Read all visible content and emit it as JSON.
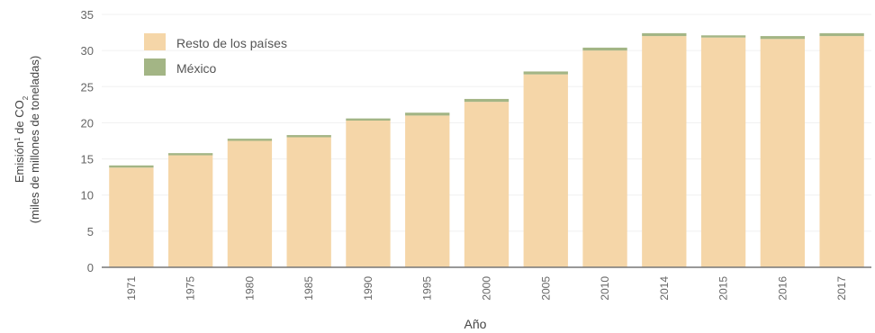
{
  "chart_data": {
    "type": "bar",
    "stacked": true,
    "categories": [
      "1971",
      "1975",
      "1980",
      "1985",
      "1990",
      "1995",
      "2000",
      "2005",
      "2010",
      "2014",
      "2015",
      "2016",
      "2017"
    ],
    "series": [
      {
        "name": "Resto de los países",
        "color": "#F5D6A8",
        "values": [
          13.8,
          15.5,
          17.5,
          18.0,
          20.3,
          21.0,
          22.9,
          26.7,
          30.0,
          32.0,
          31.8,
          31.6,
          32.0
        ]
      },
      {
        "name": "México",
        "color": "#A3B585",
        "values": [
          0.3,
          0.3,
          0.3,
          0.3,
          0.3,
          0.4,
          0.4,
          0.4,
          0.4,
          0.4,
          0.3,
          0.4,
          0.4
        ]
      }
    ],
    "xlabel": "Año",
    "ylabel_line1": "Emisión",
    "ylabel_sup": "1",
    "ylabel_line1_rest": " de CO",
    "ylabel_sub": "2",
    "ylabel_line2": "(miles de millones de toneladas)",
    "ylim": [
      0,
      35
    ],
    "yticks": [
      0,
      5,
      10,
      15,
      20,
      25,
      30,
      35
    ],
    "grid": true,
    "legend_position": "top-left"
  }
}
